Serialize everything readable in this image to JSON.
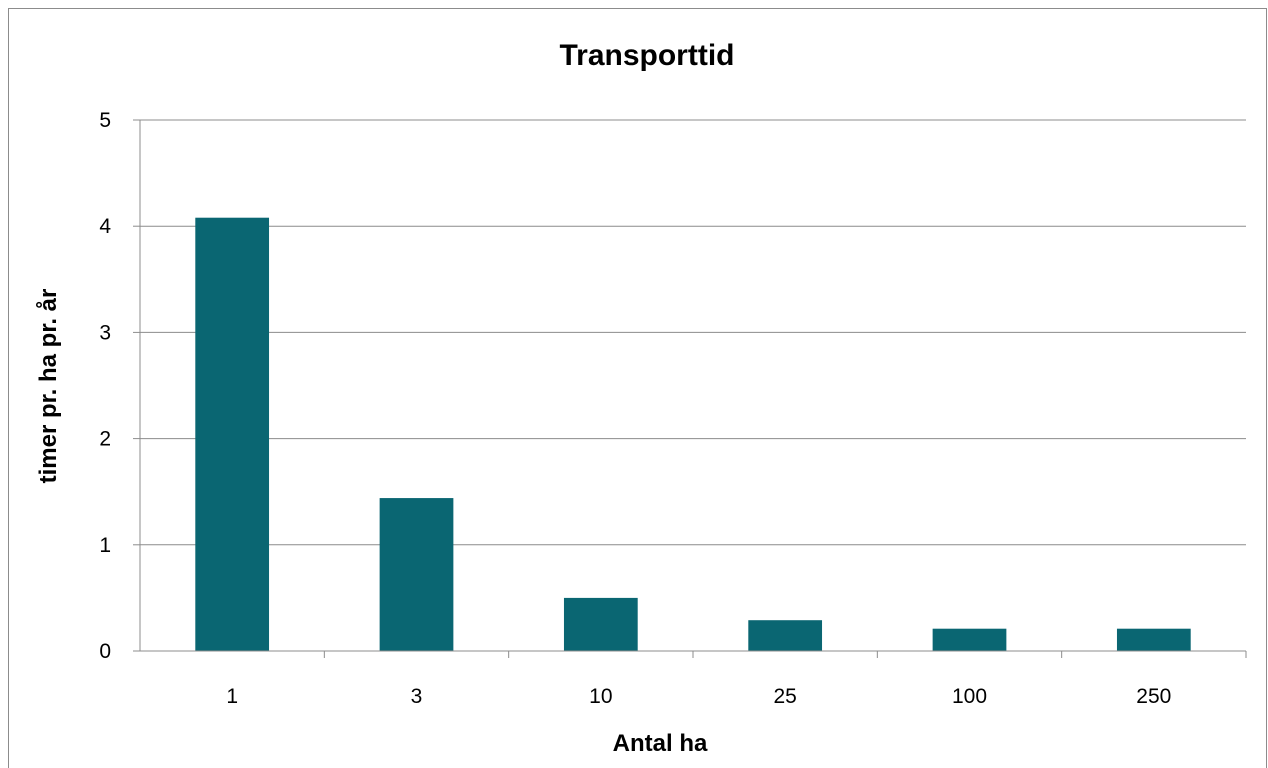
{
  "chart_data": {
    "type": "bar",
    "title": "Transporttid",
    "xlabel": "Antal ha",
    "ylabel": "timer  pr. ha pr. år",
    "categories": [
      "1",
      "3",
      "10",
      "25",
      "100",
      "250"
    ],
    "series": [
      {
        "values": [
          4.08,
          1.44,
          0.5,
          0.29,
          0.21,
          0.21
        ],
        "color": "#0a6672"
      }
    ],
    "ylim": [
      0,
      5
    ],
    "yticks": [
      "0",
      "1",
      "2",
      "3",
      "4",
      "5"
    ],
    "grid": true,
    "legend": "none"
  },
  "colors": {
    "bar": "#0a6672",
    "gridline": "#8c8c8c",
    "axis": "#8c8c8c"
  }
}
